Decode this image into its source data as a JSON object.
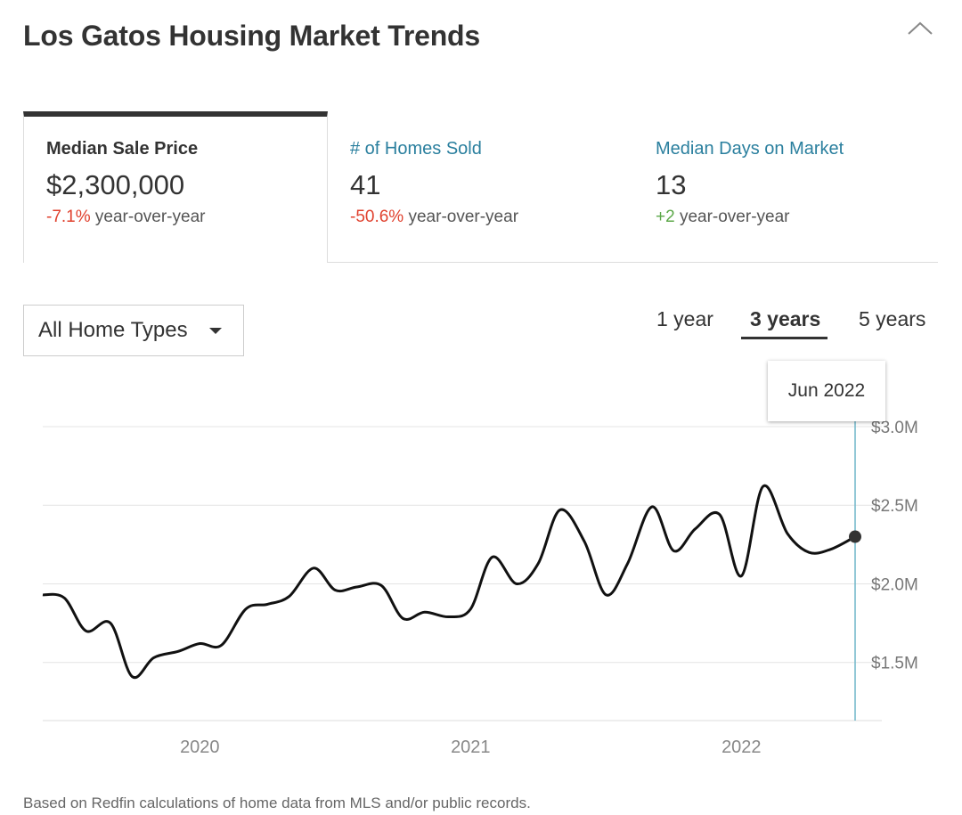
{
  "header": {
    "title": "Los Gatos Housing Market Trends",
    "collapse_icon": "chevron-up-icon"
  },
  "tabs": [
    {
      "label": "Median Sale Price",
      "value": "$2,300,000",
      "change": "-7.1%",
      "change_suffix": "year-over-year",
      "change_color": "#e0412e",
      "active": true
    },
    {
      "label": "# of Homes Sold",
      "value": "41",
      "change": "-50.6%",
      "change_suffix": "year-over-year",
      "change_color": "#e0412e",
      "active": false
    },
    {
      "label": "Median Days on Market",
      "value": "13",
      "change": "+2",
      "change_suffix": "year-over-year",
      "change_color": "#5da84a",
      "active": false
    }
  ],
  "filter": {
    "selected": "All Home Types"
  },
  "time_ranges": [
    "1 year",
    "3 years",
    "5 years"
  ],
  "selected_range": "3 years",
  "tooltip": {
    "label": "Jun 2022"
  },
  "footer": {
    "note": "Based on Redfin calculations of home data from MLS and/or public records."
  },
  "chart_data": {
    "type": "line",
    "y_tick_labels": [
      "$3.0M",
      "$2.5M",
      "$2.0M",
      "$1.5M"
    ],
    "y_ticks": [
      3.0,
      2.5,
      2.0,
      1.5
    ],
    "x_tick_labels": [
      "2020",
      "2021",
      "2022"
    ],
    "x_ticks": [
      2020.0,
      2021.0,
      2022.0
    ],
    "ylim": [
      1.13,
      3.0
    ],
    "xlim": [
      2019.42,
      2022.42
    ],
    "grid": true,
    "highlight": "Jun 2022",
    "series": [
      {
        "values_unit": "$M",
        "x": [
          2019.42,
          2019.5,
          2019.58,
          2019.67,
          2019.75,
          2019.83,
          2019.92,
          2020.0,
          2020.08,
          2020.17,
          2020.25,
          2020.33,
          2020.42,
          2020.5,
          2020.58,
          2020.67,
          2020.75,
          2020.83,
          2020.92,
          2021.0,
          2021.08,
          2021.17,
          2021.25,
          2021.33,
          2021.42,
          2021.5,
          2021.58,
          2021.67,
          2021.75,
          2021.83,
          2021.92,
          2022.0,
          2022.08,
          2022.17,
          2022.25,
          2022.33,
          2022.42
        ],
        "y": [
          1.93,
          1.91,
          1.7,
          1.75,
          1.41,
          1.53,
          1.57,
          1.62,
          1.61,
          1.84,
          1.87,
          1.92,
          2.1,
          1.96,
          1.98,
          1.99,
          1.78,
          1.82,
          1.79,
          1.84,
          2.17,
          2.0,
          2.13,
          2.47,
          2.27,
          1.93,
          2.13,
          2.49,
          2.21,
          2.35,
          2.44,
          2.05,
          2.62,
          2.32,
          2.2,
          2.22,
          2.3
        ]
      }
    ]
  }
}
